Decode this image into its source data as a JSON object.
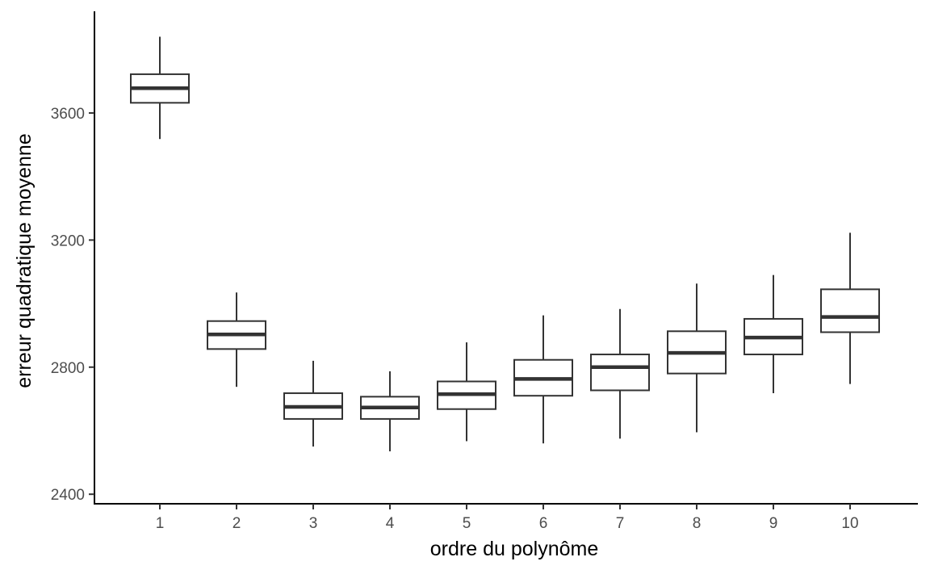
{
  "chart_data": {
    "type": "boxplot",
    "title": "",
    "xlabel": "ordre du polynôme",
    "ylabel": "erreur quadratique moyenne",
    "categories": [
      "1",
      "2",
      "3",
      "4",
      "5",
      "6",
      "7",
      "8",
      "9",
      "10"
    ],
    "y_ticks": [
      2400,
      2800,
      3200,
      3600
    ],
    "ylim": [
      2370,
      3920
    ],
    "grid": false,
    "legend": "none",
    "boxes": [
      {
        "category": "1",
        "whisker_low": 3518,
        "q1": 3632,
        "median": 3678,
        "q3": 3722,
        "whisker_high": 3840
      },
      {
        "category": "2",
        "whisker_low": 2738,
        "q1": 2857,
        "median": 2903,
        "q3": 2945,
        "whisker_high": 3035
      },
      {
        "category": "3",
        "whisker_low": 2550,
        "q1": 2637,
        "median": 2675,
        "q3": 2718,
        "whisker_high": 2820
      },
      {
        "category": "4",
        "whisker_low": 2535,
        "q1": 2637,
        "median": 2673,
        "q3": 2707,
        "whisker_high": 2787
      },
      {
        "category": "5",
        "whisker_low": 2567,
        "q1": 2668,
        "median": 2715,
        "q3": 2755,
        "whisker_high": 2878
      },
      {
        "category": "6",
        "whisker_low": 2560,
        "q1": 2710,
        "median": 2763,
        "q3": 2823,
        "whisker_high": 2963
      },
      {
        "category": "7",
        "whisker_low": 2575,
        "q1": 2727,
        "median": 2800,
        "q3": 2840,
        "whisker_high": 2983
      },
      {
        "category": "8",
        "whisker_low": 2595,
        "q1": 2780,
        "median": 2845,
        "q3": 2913,
        "whisker_high": 3063
      },
      {
        "category": "9",
        "whisker_low": 2718,
        "q1": 2840,
        "median": 2893,
        "q3": 2952,
        "whisker_high": 3090
      },
      {
        "category": "10",
        "whisker_low": 2747,
        "q1": 2910,
        "median": 2958,
        "q3": 3045,
        "whisker_high": 3223
      }
    ]
  }
}
